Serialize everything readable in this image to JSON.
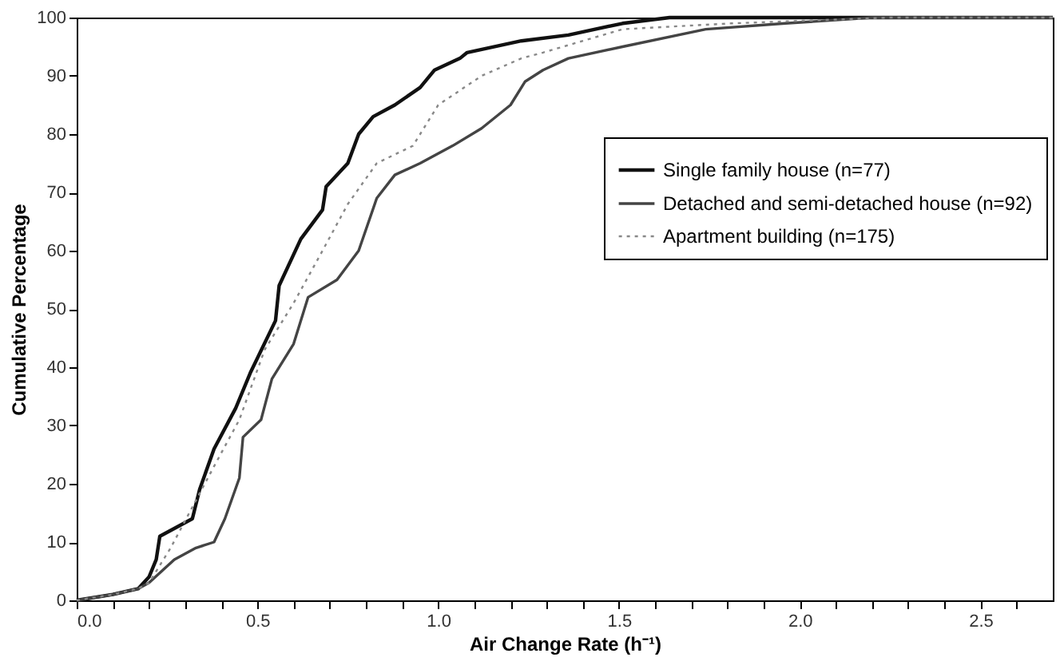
{
  "chart_data": {
    "type": "line",
    "xlabel": "Air Change Rate (h⁻¹)",
    "ylabel": "Cumulative Percentage",
    "xlim": [
      0,
      2.7
    ],
    "ylim": [
      0,
      100
    ],
    "xticks": [
      {
        "value": 0,
        "label": "0.0"
      },
      {
        "value": 0.1,
        "label": null
      },
      {
        "value": 0.2,
        "label": null
      },
      {
        "value": 0.3,
        "label": null
      },
      {
        "value": 0.4,
        "label": null
      },
      {
        "value": 0.5,
        "label": "0.5"
      },
      {
        "value": 0.6,
        "label": null
      },
      {
        "value": 0.7,
        "label": null
      },
      {
        "value": 0.8,
        "label": null
      },
      {
        "value": 0.9,
        "label": null
      },
      {
        "value": 1.0,
        "label": "1.0"
      },
      {
        "value": 1.1,
        "label": null
      },
      {
        "value": 1.2,
        "label": null
      },
      {
        "value": 1.3,
        "label": null
      },
      {
        "value": 1.4,
        "label": null
      },
      {
        "value": 1.5,
        "label": "1.5"
      },
      {
        "value": 1.6,
        "label": null
      },
      {
        "value": 1.7,
        "label": null
      },
      {
        "value": 1.8,
        "label": null
      },
      {
        "value": 1.9,
        "label": null
      },
      {
        "value": 2.0,
        "label": "2.0"
      },
      {
        "value": 2.1,
        "label": null
      },
      {
        "value": 2.2,
        "label": null
      },
      {
        "value": 2.3,
        "label": null
      },
      {
        "value": 2.4,
        "label": null
      },
      {
        "value": 2.5,
        "label": "2.5"
      },
      {
        "value": 2.6,
        "label": null
      }
    ],
    "yticks": [
      0,
      10,
      20,
      30,
      40,
      50,
      60,
      70,
      80,
      90,
      100
    ],
    "grid": false,
    "legend": "top right",
    "marker": "none",
    "series": [
      {
        "name": "Single family house (n=77)",
        "color": "#111111",
        "line_style": "solid",
        "x": [
          0,
          0.1,
          0.17,
          0.2,
          0.22,
          0.23,
          0.32,
          0.34,
          0.38,
          0.44,
          0.48,
          0.55,
          0.56,
          0.62,
          0.68,
          0.69,
          0.75,
          0.78,
          0.82,
          0.88,
          0.95,
          0.99,
          1.06,
          1.08,
          1.23,
          1.36,
          1.51,
          1.64,
          2.7
        ],
        "values": [
          0,
          1,
          2,
          4,
          7,
          11,
          14,
          19,
          26,
          33,
          39,
          48,
          54,
          62,
          67,
          71,
          75,
          80,
          83,
          85,
          88,
          91,
          93,
          94,
          96,
          97,
          99,
          100,
          100
        ]
      },
      {
        "name": "Detached and semi-detached house (n=92)",
        "color": "#444444",
        "line_style": "solid",
        "x": [
          0,
          0.1,
          0.17,
          0.2,
          0.27,
          0.33,
          0.38,
          0.41,
          0.45,
          0.46,
          0.51,
          0.54,
          0.6,
          0.64,
          0.72,
          0.78,
          0.83,
          0.88,
          0.95,
          1.04,
          1.12,
          1.2,
          1.24,
          1.29,
          1.36,
          1.51,
          1.74,
          1.96,
          2.2,
          2.7
        ],
        "values": [
          0,
          1,
          2,
          3,
          7,
          9,
          10,
          14,
          21,
          28,
          31,
          38,
          44,
          52,
          55,
          60,
          69,
          73,
          75,
          78,
          81,
          85,
          89,
          91,
          93,
          95,
          98,
          99,
          100,
          100
        ]
      },
      {
        "name": "Apartment building (n=175)",
        "color": "#888888",
        "line_style": "dotted",
        "x": [
          0,
          0.1,
          0.17,
          0.2,
          0.26,
          0.38,
          0.45,
          0.52,
          0.6,
          0.68,
          0.75,
          0.83,
          0.93,
          1.0,
          1.12,
          1.23,
          1.29,
          1.51,
          1.81,
          2.25,
          2.7
        ],
        "values": [
          0,
          1,
          2,
          3,
          9,
          23,
          31,
          43,
          51,
          60,
          68,
          75,
          78,
          85,
          90,
          93,
          94,
          98,
          99,
          100,
          100
        ]
      }
    ]
  }
}
